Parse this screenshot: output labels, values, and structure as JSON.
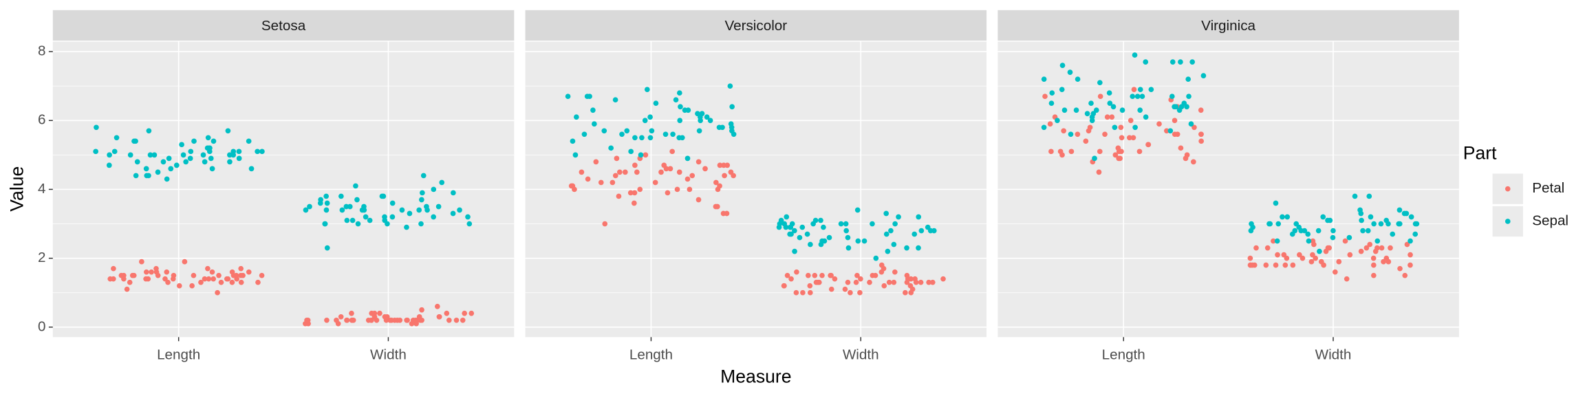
{
  "chart_data": {
    "type": "scatter",
    "panels": [
      "Setosa",
      "Versicolor",
      "Virginica"
    ],
    "categories": [
      "Length",
      "Width"
    ],
    "x_label": "Measure",
    "y_label": "Value",
    "legend_title": "Part",
    "ylim": [
      -0.29,
      8.29
    ],
    "yticks": [
      0,
      2,
      4,
      6,
      8
    ],
    "grid": true,
    "series": [
      {
        "name": "Petal",
        "color": "#F8766D",
        "values": [
          [
            [
              1.4,
              1.4,
              1.3,
              1.5,
              1.4,
              1.7,
              1.4,
              1.5,
              1.4,
              1.5,
              1.5,
              1.6,
              1.4,
              1.1,
              1.2,
              1.5,
              1.3,
              1.4,
              1.7,
              1.5,
              1.7,
              1.5,
              1.0,
              1.7,
              1.9,
              1.6,
              1.6,
              1.5,
              1.4,
              1.6,
              1.6,
              1.5,
              1.5,
              1.4,
              1.5,
              1.2,
              1.3,
              1.4,
              1.3,
              1.5,
              1.3,
              1.3,
              1.3,
              1.6,
              1.9,
              1.4,
              1.6,
              1.4,
              1.5,
              1.4
            ],
            [
              0.2,
              0.2,
              0.2,
              0.2,
              0.2,
              0.4,
              0.3,
              0.2,
              0.2,
              0.1,
              0.2,
              0.2,
              0.1,
              0.1,
              0.2,
              0.4,
              0.4,
              0.3,
              0.3,
              0.3,
              0.2,
              0.4,
              0.2,
              0.5,
              0.2,
              0.2,
              0.4,
              0.2,
              0.2,
              0.2,
              0.2,
              0.4,
              0.1,
              0.2,
              0.2,
              0.2,
              0.2,
              0.1,
              0.2,
              0.2,
              0.3,
              0.3,
              0.2,
              0.6,
              0.4,
              0.3,
              0.2,
              0.2,
              0.2,
              0.2
            ]
          ],
          [
            [
              4.7,
              4.5,
              4.9,
              4.0,
              4.6,
              4.5,
              4.7,
              3.3,
              4.6,
              3.9,
              3.5,
              4.2,
              4.0,
              4.7,
              3.6,
              4.4,
              4.5,
              4.1,
              4.5,
              3.9,
              4.8,
              4.0,
              4.9,
              4.7,
              4.3,
              4.4,
              4.8,
              5.0,
              4.5,
              3.5,
              3.8,
              3.7,
              3.9,
              5.1,
              4.5,
              4.5,
              4.7,
              4.4,
              4.1,
              4.0,
              4.4,
              4.6,
              4.0,
              3.3,
              4.2,
              4.2,
              4.2,
              4.3,
              3.0,
              4.1
            ],
            [
              1.4,
              1.5,
              1.5,
              1.3,
              1.5,
              1.3,
              1.6,
              1.0,
              1.3,
              1.4,
              1.0,
              1.5,
              1.0,
              1.4,
              1.3,
              1.4,
              1.5,
              1.0,
              1.5,
              1.1,
              1.8,
              1.3,
              1.5,
              1.2,
              1.3,
              1.4,
              1.4,
              1.7,
              1.5,
              1.0,
              1.1,
              1.0,
              1.2,
              1.6,
              1.5,
              1.6,
              1.5,
              1.3,
              1.3,
              1.3,
              1.2,
              1.4,
              1.2,
              1.0,
              1.3,
              1.2,
              1.3,
              1.3,
              1.1,
              1.3
            ]
          ],
          [
            [
              6.0,
              5.1,
              5.9,
              5.6,
              5.8,
              6.6,
              4.5,
              6.3,
              5.8,
              6.1,
              5.1,
              5.3,
              5.5,
              5.0,
              5.1,
              5.3,
              5.5,
              6.7,
              6.9,
              5.0,
              5.7,
              4.9,
              6.7,
              4.9,
              5.7,
              6.0,
              4.8,
              4.9,
              5.6,
              5.8,
              6.1,
              6.4,
              5.6,
              5.1,
              5.6,
              6.1,
              5.6,
              5.5,
              4.8,
              5.4,
              5.6,
              5.1,
              5.1,
              5.9,
              5.7,
              5.2,
              5.0,
              5.2,
              5.4,
              5.1
            ],
            [
              2.5,
              1.9,
              2.1,
              1.8,
              2.2,
              2.1,
              1.7,
              1.8,
              1.8,
              2.5,
              2.0,
              1.9,
              2.1,
              2.0,
              2.4,
              2.3,
              1.8,
              2.2,
              2.3,
              1.5,
              2.3,
              2.0,
              2.0,
              1.8,
              2.1,
              1.8,
              1.8,
              1.8,
              2.1,
              1.6,
              1.9,
              2.0,
              2.2,
              1.5,
              1.4,
              2.3,
              2.4,
              1.8,
              1.8,
              2.1,
              2.4,
              2.3,
              1.9,
              2.3,
              2.5,
              2.3,
              1.9,
              2.0,
              2.3,
              1.8
            ]
          ]
        ]
      },
      {
        "name": "Sepal",
        "color": "#00BFC4",
        "values": [
          [
            [
              5.1,
              4.9,
              4.7,
              4.6,
              5.0,
              5.4,
              4.6,
              5.0,
              4.4,
              4.9,
              5.4,
              4.8,
              4.8,
              4.3,
              5.8,
              5.7,
              5.4,
              5.1,
              5.7,
              5.1,
              5.4,
              5.1,
              4.6,
              5.1,
              4.8,
              5.0,
              5.0,
              5.2,
              5.2,
              4.7,
              4.8,
              5.4,
              5.2,
              5.5,
              4.9,
              5.0,
              5.5,
              4.9,
              4.4,
              5.1,
              5.0,
              4.5,
              4.4,
              5.0,
              5.1,
              4.8,
              5.1,
              4.6,
              5.3,
              5.0
            ],
            [
              3.5,
              3.0,
              3.2,
              3.1,
              3.6,
              3.9,
              3.4,
              3.4,
              2.9,
              3.1,
              3.7,
              3.4,
              3.0,
              3.0,
              4.0,
              4.4,
              3.9,
              3.5,
              3.8,
              3.8,
              3.4,
              3.7,
              3.6,
              3.3,
              3.4,
              3.0,
              3.4,
              3.5,
              3.4,
              3.2,
              3.1,
              3.4,
              4.1,
              4.2,
              3.1,
              3.2,
              3.5,
              3.6,
              3.0,
              3.4,
              3.5,
              2.3,
              3.2,
              3.5,
              3.8,
              3.0,
              3.8,
              3.2,
              3.7,
              3.3
            ]
          ],
          [
            [
              7.0,
              6.4,
              6.9,
              5.5,
              6.5,
              5.7,
              6.3,
              4.9,
              6.6,
              5.2,
              5.0,
              5.9,
              6.0,
              6.1,
              5.6,
              6.7,
              5.6,
              5.8,
              6.2,
              5.6,
              5.9,
              6.1,
              6.3,
              6.1,
              6.4,
              6.6,
              6.8,
              6.7,
              6.0,
              5.7,
              5.5,
              5.5,
              5.8,
              6.0,
              5.4,
              6.0,
              6.7,
              6.3,
              5.6,
              5.5,
              5.5,
              6.1,
              5.8,
              5.0,
              5.6,
              5.7,
              5.7,
              6.2,
              5.1,
              5.7
            ],
            [
              3.2,
              3.2,
              3.1,
              2.3,
              2.8,
              2.8,
              3.3,
              2.4,
              2.9,
              2.7,
              2.0,
              3.0,
              2.2,
              2.9,
              2.9,
              3.1,
              3.0,
              2.7,
              2.2,
              2.5,
              3.2,
              2.8,
              2.5,
              2.8,
              2.9,
              3.0,
              2.8,
              3.0,
              2.9,
              2.6,
              2.4,
              2.4,
              2.7,
              2.7,
              3.0,
              3.4,
              3.1,
              2.3,
              3.0,
              2.5,
              2.6,
              3.0,
              2.6,
              2.3,
              2.7,
              3.0,
              2.9,
              2.9,
              2.5,
              2.8
            ]
          ],
          [
            [
              6.3,
              5.8,
              7.1,
              6.3,
              6.5,
              7.6,
              4.9,
              7.3,
              6.7,
              7.2,
              6.5,
              6.4,
              6.8,
              5.7,
              5.8,
              6.4,
              6.5,
              7.7,
              7.7,
              6.0,
              6.9,
              5.6,
              7.7,
              6.3,
              6.7,
              7.2,
              6.2,
              6.1,
              6.4,
              7.2,
              7.4,
              7.9,
              6.4,
              6.3,
              6.1,
              7.7,
              6.3,
              6.4,
              6.0,
              6.9,
              6.7,
              6.9,
              5.8,
              6.8,
              6.7,
              6.7,
              6.3,
              6.5,
              6.2,
              5.9
            ],
            [
              3.3,
              2.7,
              3.0,
              2.9,
              3.0,
              3.0,
              2.5,
              2.9,
              2.5,
              3.6,
              3.2,
              2.7,
              3.0,
              2.5,
              2.8,
              3.2,
              3.0,
              3.8,
              2.6,
              2.2,
              3.2,
              2.8,
              2.8,
              2.7,
              3.3,
              3.2,
              2.8,
              3.0,
              2.8,
              3.0,
              2.8,
              3.8,
              2.8,
              2.8,
              2.6,
              3.0,
              3.4,
              3.1,
              3.0,
              3.1,
              3.1,
              3.1,
              2.7,
              3.2,
              3.3,
              3.0,
              2.5,
              3.0,
              3.4,
              3.0
            ]
          ]
        ]
      }
    ]
  }
}
